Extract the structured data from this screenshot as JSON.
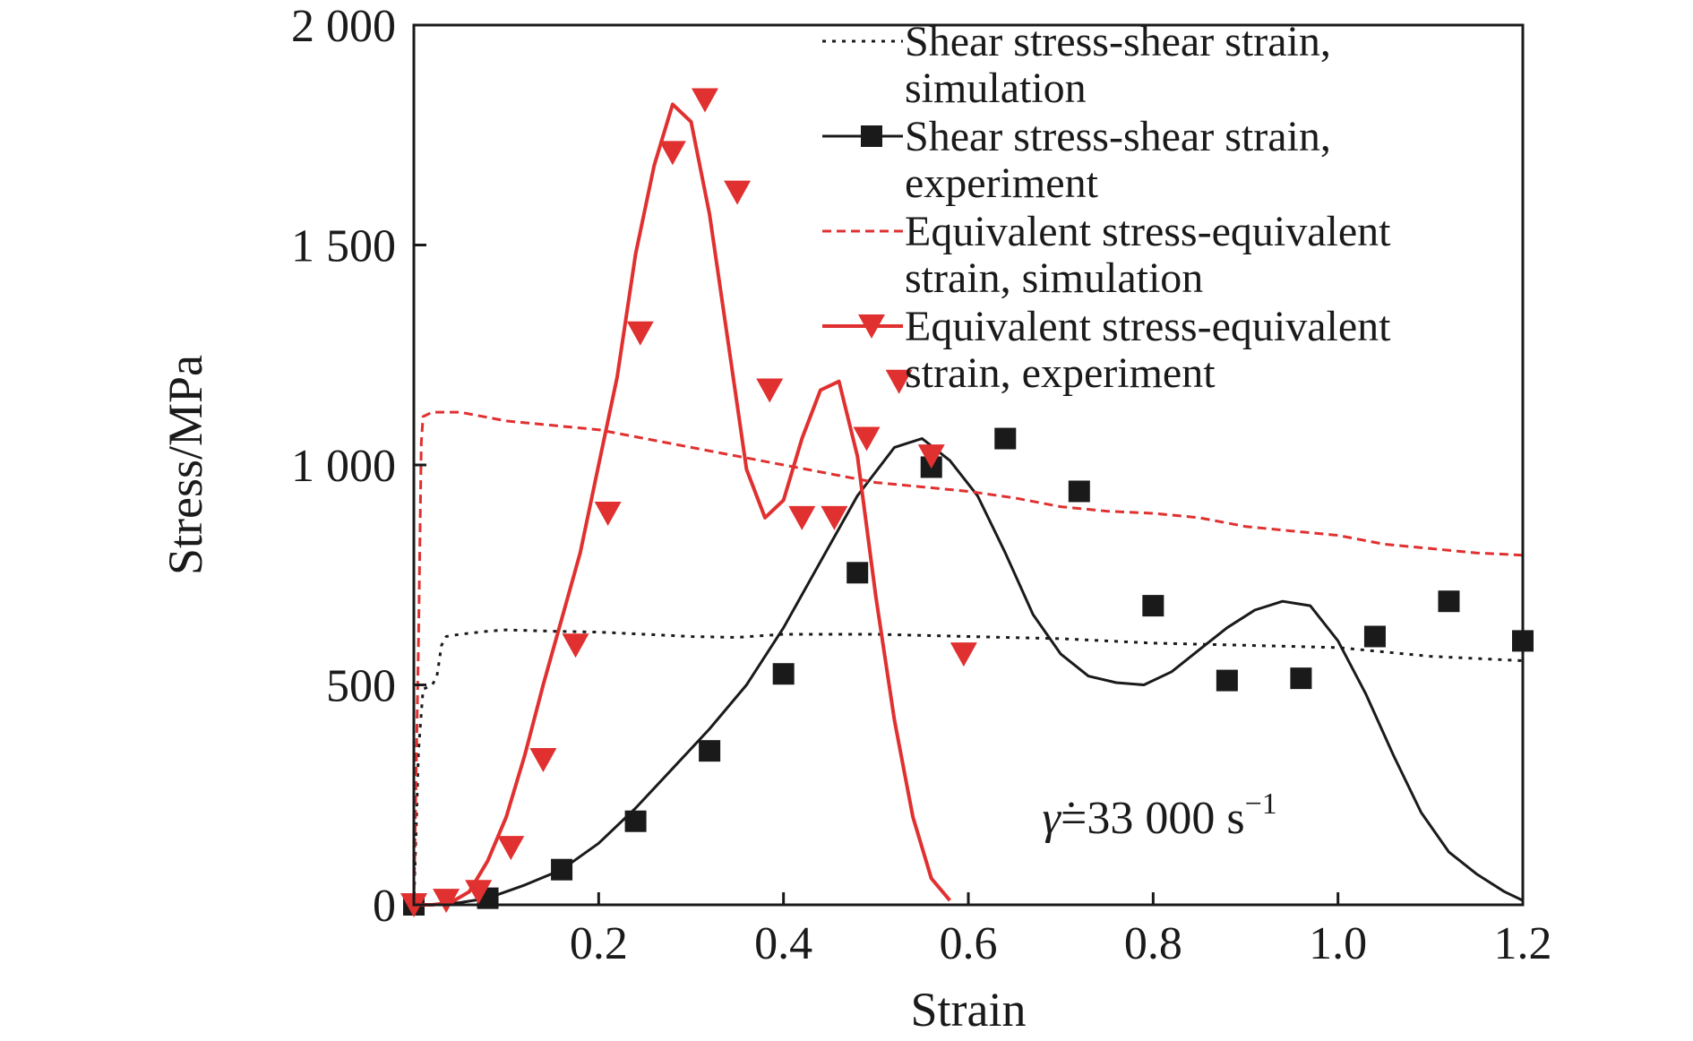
{
  "chart_data": {
    "type": "line",
    "xlabel": "Strain",
    "ylabel": "Stress/MPa",
    "xlim": [
      0,
      1.2
    ],
    "ylim": [
      0,
      2000
    ],
    "xticks": [
      0.2,
      0.4,
      0.6,
      0.8,
      1.0,
      1.2
    ],
    "xtick_labels": [
      "0.2",
      "0.4",
      "0.6",
      "0.8",
      "1.0",
      "1.2"
    ],
    "yticks": [
      0,
      500,
      1000,
      1500,
      2000
    ],
    "ytick_labels": [
      "0",
      "500",
      "1 000",
      "1 500",
      "2 000"
    ],
    "grid": false,
    "legend_position": "top-right",
    "annotation": {
      "symbol": "γ̇",
      "text": "=33 000 s",
      "superscript": "−1"
    },
    "series": [
      {
        "name": "Shear stress-shear strain, simulation",
        "legend_lines": [
          "Shear stress-shear strain,",
          "simulation"
        ],
        "style": "dotted",
        "color": "#1a1a1a",
        "marker": "none",
        "x": [
          0,
          0.005,
          0.01,
          0.02,
          0.025,
          0.03,
          0.035,
          0.05,
          0.08,
          0.1,
          0.15,
          0.2,
          0.25,
          0.3,
          0.35,
          0.4,
          0.5,
          0.6,
          0.7,
          0.8,
          0.9,
          1.0,
          1.1,
          1.2
        ],
        "y": [
          0,
          350,
          490,
          500,
          520,
          590,
          610,
          615,
          622,
          625,
          622,
          620,
          615,
          610,
          608,
          615,
          615,
          610,
          605,
          595,
          590,
          585,
          565,
          555
        ]
      },
      {
        "name": "Shear stress-shear strain, experiment",
        "legend_lines": [
          "Shear stress-shear strain,",
          "experiment"
        ],
        "style": "solid",
        "color": "#1a1a1a",
        "marker": "square",
        "x": [
          0,
          0.02,
          0.05,
          0.08,
          0.12,
          0.16,
          0.2,
          0.24,
          0.28,
          0.32,
          0.36,
          0.4,
          0.44,
          0.48,
          0.52,
          0.55,
          0.58,
          0.61,
          0.64,
          0.67,
          0.7,
          0.73,
          0.76,
          0.79,
          0.82,
          0.85,
          0.88,
          0.91,
          0.94,
          0.97,
          1.0,
          1.03,
          1.06,
          1.09,
          1.12,
          1.15,
          1.18,
          1.2
        ],
        "y": [
          0,
          0,
          5,
          15,
          45,
          80,
          140,
          220,
          310,
          400,
          500,
          630,
          780,
          930,
          1040,
          1060,
          1010,
          930,
          800,
          660,
          570,
          520,
          505,
          500,
          530,
          580,
          630,
          670,
          690,
          680,
          600,
          480,
          340,
          210,
          120,
          70,
          30,
          10
        ],
        "markers_x": [
          0,
          0.08,
          0.16,
          0.24,
          0.32,
          0.4,
          0.48,
          0.56,
          0.64,
          0.72,
          0.8,
          0.88,
          0.96,
          1.04,
          1.12,
          1.2
        ],
        "markers_y": [
          0,
          15,
          80,
          190,
          350,
          525,
          755,
          995,
          1060,
          940,
          680,
          510,
          515,
          610,
          690,
          600
        ]
      },
      {
        "name": "Equivalent stress-equivalent strain, simulation",
        "legend_lines": [
          "Equivalent stress-equivalent",
          "strain, simulation"
        ],
        "style": "dashed",
        "color": "#e03030",
        "marker": "none",
        "x": [
          0,
          0.005,
          0.008,
          0.01,
          0.02,
          0.05,
          0.1,
          0.15,
          0.2,
          0.25,
          0.3,
          0.35,
          0.4,
          0.45,
          0.5,
          0.55,
          0.6,
          0.65,
          0.7,
          0.75,
          0.8,
          0.85,
          0.9,
          0.95,
          1.0,
          1.05,
          1.1,
          1.15,
          1.2
        ],
        "y": [
          0,
          600,
          1050,
          1110,
          1120,
          1120,
          1100,
          1090,
          1080,
          1060,
          1040,
          1020,
          1000,
          980,
          960,
          950,
          940,
          925,
          905,
          895,
          890,
          880,
          860,
          850,
          840,
          820,
          810,
          800,
          795
        ]
      },
      {
        "name": "Equivalent stress-equivalent strain, experiment",
        "legend_lines": [
          "Equivalent stress-equivalent",
          "strain, experiment"
        ],
        "style": "solid",
        "color": "#e03030",
        "marker": "triangle-down",
        "x": [
          0,
          0.02,
          0.04,
          0.06,
          0.08,
          0.1,
          0.12,
          0.14,
          0.16,
          0.18,
          0.2,
          0.22,
          0.24,
          0.26,
          0.28,
          0.3,
          0.32,
          0.34,
          0.36,
          0.38,
          0.4,
          0.42,
          0.44,
          0.46,
          0.48,
          0.5,
          0.52,
          0.54,
          0.56,
          0.58
        ],
        "y": [
          0,
          0,
          5,
          30,
          100,
          200,
          340,
          500,
          650,
          800,
          1000,
          1200,
          1480,
          1680,
          1820,
          1780,
          1570,
          1280,
          990,
          880,
          920,
          1060,
          1170,
          1190,
          1020,
          700,
          420,
          200,
          60,
          10
        ],
        "markers_x": [
          0,
          0.035,
          0.07,
          0.105,
          0.14,
          0.175,
          0.21,
          0.245,
          0.28,
          0.315,
          0.35,
          0.385,
          0.42,
          0.455,
          0.49,
          0.525,
          0.56,
          0.595
        ],
        "markers_y": [
          0,
          10,
          30,
          130,
          330,
          590,
          890,
          1300,
          1710,
          1830,
          1620,
          1170,
          880,
          880,
          1060,
          1190,
          1020,
          570
        ]
      }
    ]
  }
}
